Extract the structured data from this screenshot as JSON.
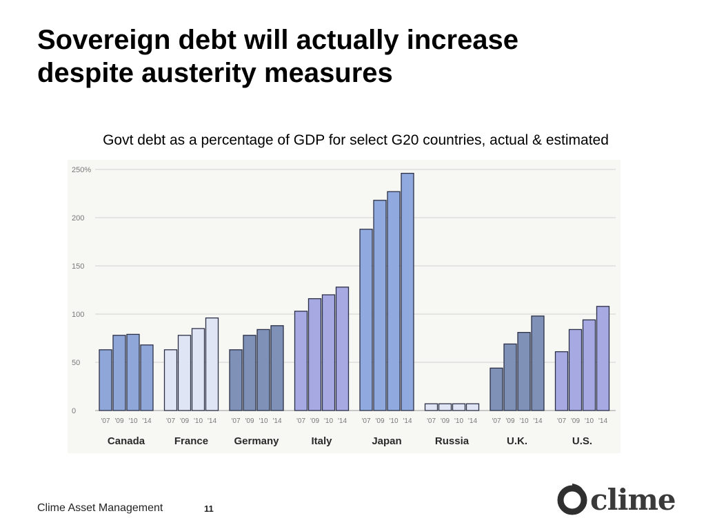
{
  "slide": {
    "title_line1": "Sovereign debt will actually increase",
    "title_line2": "despite austerity measures",
    "caption": "Govt debt as a percentage of GDP for select G20 countries, actual & estimated"
  },
  "footer": {
    "company": "Clime Asset Management",
    "page": "11"
  },
  "logo": {
    "text": "clime"
  },
  "chart_data": {
    "type": "bar",
    "title": "",
    "xlabel": "",
    "ylabel": "",
    "ylim": [
      0,
      250
    ],
    "yticks": [
      "0",
      "50",
      "100",
      "150",
      "200",
      "250%"
    ],
    "grid": true,
    "year_labels": [
      "'07",
      "'09",
      "'10",
      "'14"
    ],
    "groups": [
      {
        "name": "Canada",
        "values": [
          63,
          78,
          79,
          68
        ],
        "color": "#8fa7d8"
      },
      {
        "name": "France",
        "values": [
          63,
          78,
          85,
          96
        ],
        "color": "#dfe5f4"
      },
      {
        "name": "Germany",
        "values": [
          63,
          78,
          84,
          88
        ],
        "color": "#7f91b6"
      },
      {
        "name": "Italy",
        "values": [
          103,
          116,
          120,
          128
        ],
        "color": "#a6a9e2"
      },
      {
        "name": "Japan",
        "values": [
          188,
          218,
          227,
          246
        ],
        "color": "#90a9de"
      },
      {
        "name": "Russia",
        "values": [
          7,
          7,
          7,
          7
        ],
        "color": "#dfe5f4"
      },
      {
        "name": "U.K.",
        "values": [
          44,
          69,
          81,
          98
        ],
        "color": "#7f91b6"
      },
      {
        "name": "U.S.",
        "values": [
          61,
          84,
          94,
          108
        ],
        "color": "#a6a9e2"
      }
    ]
  }
}
